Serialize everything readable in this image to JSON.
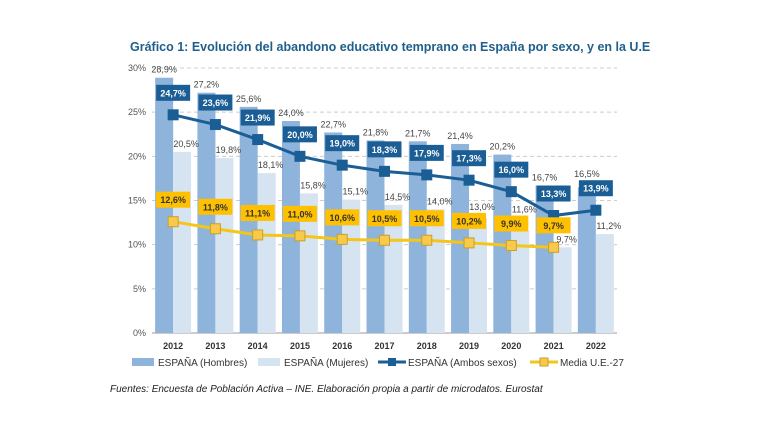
{
  "title": "Gráfico 1: Evolución del abandono educativo temprano en España por sexo, y en la U.E",
  "source": "Fuentes: Encuesta de Población Activa – INE. Elaboración propia a partir de microdatos. Eurostat",
  "chart_data": {
    "type": "bar",
    "title": "Gráfico 1: Evolución del abandono educativo temprano en España por sexo, y en la U.E",
    "categories": [
      "2012",
      "2013",
      "2014",
      "2015",
      "2016",
      "2017",
      "2018",
      "2019",
      "2020",
      "2021",
      "2022"
    ],
    "ylim": [
      0,
      30
    ],
    "yticks": [
      "0%",
      "5%",
      "10%",
      "15%",
      "20%",
      "25%",
      "30%"
    ],
    "grid": true,
    "legend_placement": "bottom",
    "series": [
      {
        "name": "ESPAÑA (Hombres)",
        "type": "bar",
        "color": "#8fb4dc",
        "values": [
          28.9,
          27.2,
          25.6,
          24.0,
          22.7,
          21.8,
          21.7,
          21.4,
          20.2,
          16.7,
          16.5
        ],
        "labels": [
          "28,9%",
          "27,2%",
          "25,6%",
          "24,0%",
          "22,7%",
          "21,8%",
          "21,7%",
          "21,4%",
          "20,2%",
          "16,7%",
          "16,5%"
        ]
      },
      {
        "name": "ESPAÑA (Mujeres)",
        "type": "bar",
        "color": "#d6e4f1",
        "values": [
          20.5,
          19.8,
          18.1,
          15.8,
          15.1,
          14.5,
          14.0,
          13.0,
          11.6,
          9.7,
          11.2
        ],
        "labels": [
          "20,5%",
          "19,8%",
          "18,1%",
          "15,8%",
          "15,1%",
          "14,5%",
          "14,0%",
          "13,0%",
          "11,6%",
          "9,7%",
          "11,2%"
        ]
      },
      {
        "name": "ESPAÑA (Ambos sexos)",
        "type": "line",
        "color": "#1b5e96",
        "values": [
          24.7,
          23.6,
          21.9,
          20.0,
          19.0,
          18.3,
          17.9,
          17.3,
          16.0,
          13.3,
          13.9
        ],
        "labels": [
          "24,7%",
          "23,6%",
          "21,9%",
          "20,0%",
          "19,0%",
          "18,3%",
          "17,9%",
          "17,3%",
          "16,0%",
          "13,3%",
          "13,9%"
        ]
      },
      {
        "name": "Media U.E.-27",
        "type": "line",
        "color": "#f5c518",
        "values": [
          12.6,
          11.8,
          11.1,
          11.0,
          10.6,
          10.5,
          10.5,
          10.2,
          9.9,
          9.7,
          null
        ],
        "labels": [
          "12,6%",
          "11,8%",
          "11,1%",
          "11,0%",
          "10,6%",
          "10,5%",
          "10,5%",
          "10,2%",
          "9,9%",
          "9,7%",
          null
        ]
      }
    ]
  }
}
